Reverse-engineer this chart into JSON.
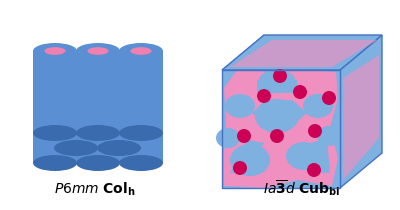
{
  "fig_width": 4.0,
  "fig_height": 2.1,
  "dpi": 100,
  "bg_color": "#ffffff",
  "cylinder_blue": "#5B8FD4",
  "cylinder_blue_dark": "#3A6BAF",
  "cylinder_pink": "#F080B0",
  "cube_blue_fill": "#7EB0E0",
  "cube_blue_edge": "#4472C4",
  "network_pink": "#F090C0",
  "dot_magenta": "#CC0055"
}
